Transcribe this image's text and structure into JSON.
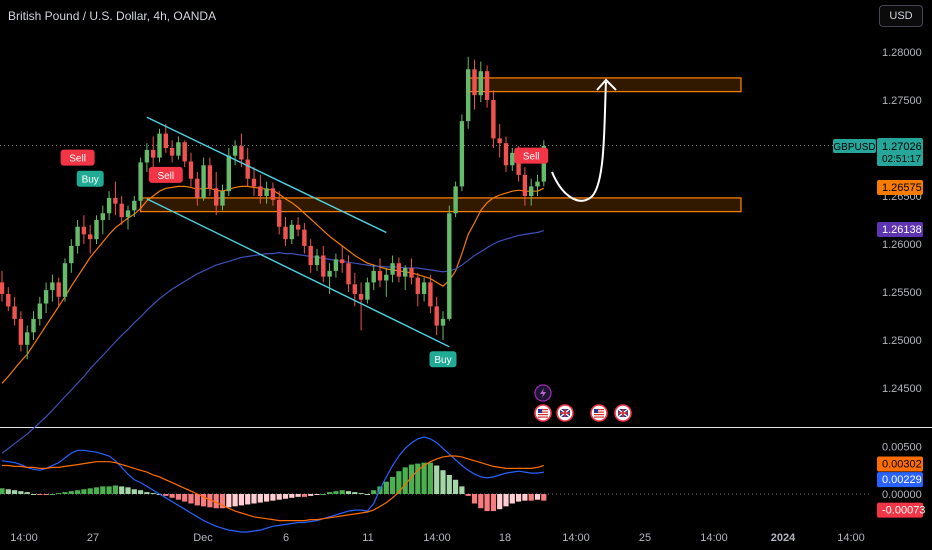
{
  "header": {
    "title": "British Pound / U.S. Dollar, 4h, OANDA",
    "currency_button": "USD"
  },
  "colors": {
    "up": "#26a69a",
    "up_body": "#66bb6a",
    "down": "#ef5350",
    "ema_fast": "#f57c00",
    "ema_slow": "#3f51b5",
    "channel": "#4dd0e1",
    "zone": "#f57c00",
    "macd": "#2962ff",
    "signal": "#ff6d00",
    "hist_up": "#4caf50",
    "hist_down": "#f77c80"
  },
  "chart_data": [
    {
      "type": "candlestick",
      "title": "British Pound / U.S. Dollar, 4h, OANDA",
      "ylim": [
        1.2415,
        1.282
      ],
      "y_ticks": [
        "1.28000",
        "1.27500",
        "1.27000",
        "1.26500",
        "1.26000",
        "1.25500",
        "1.25000",
        "1.24500"
      ],
      "x_ticks": [
        "14:00",
        "27",
        "Dec",
        "6",
        "11",
        "14:00",
        "18",
        "14:00",
        "25",
        "14:00",
        "2024",
        "14:00"
      ],
      "price_labels": [
        {
          "label": "GBPUSD",
          "value": "1.27026",
          "sub": "02:51:17"
        },
        {
          "label": "",
          "value": "1.26575"
        },
        {
          "label": "",
          "value": "1.26138"
        }
      ],
      "price_level": 1.27026,
      "ohlc": [
        [
          1.256,
          1.2572,
          1.254,
          1.2548
        ],
        [
          1.2548,
          1.2555,
          1.253,
          1.2535
        ],
        [
          1.2535,
          1.2545,
          1.2515,
          1.2522
        ],
        [
          1.2522,
          1.253,
          1.2488,
          1.2495
        ],
        [
          1.2495,
          1.2515,
          1.248,
          1.2508
        ],
        [
          1.2508,
          1.253,
          1.25,
          1.2522
        ],
        [
          1.2522,
          1.2545,
          1.2515,
          1.2538
        ],
        [
          1.2538,
          1.256,
          1.2528,
          1.2552
        ],
        [
          1.2552,
          1.2568,
          1.254,
          1.256
        ],
        [
          1.256,
          1.2565,
          1.2535,
          1.2545
        ],
        [
          1.2545,
          1.2585,
          1.254,
          1.258
        ],
        [
          1.258,
          1.2605,
          1.257,
          1.2598
        ],
        [
          1.2598,
          1.2625,
          1.259,
          1.2618
        ],
        [
          1.2618,
          1.263,
          1.26,
          1.261
        ],
        [
          1.261,
          1.262,
          1.259,
          1.2605
        ],
        [
          1.2605,
          1.263,
          1.26,
          1.2625
        ],
        [
          1.2625,
          1.264,
          1.261,
          1.2632
        ],
        [
          1.2632,
          1.2655,
          1.2625,
          1.2648
        ],
        [
          1.2648,
          1.2665,
          1.263,
          1.2642
        ],
        [
          1.2642,
          1.265,
          1.262,
          1.2628
        ],
        [
          1.2628,
          1.264,
          1.2615,
          1.2635
        ],
        [
          1.2635,
          1.265,
          1.2628,
          1.2645
        ],
        [
          1.2645,
          1.269,
          1.264,
          1.2685
        ],
        [
          1.2685,
          1.2705,
          1.2675,
          1.2698
        ],
        [
          1.2698,
          1.2712,
          1.268,
          1.269
        ],
        [
          1.269,
          1.272,
          1.2685,
          1.2715
        ],
        [
          1.2715,
          1.2725,
          1.2695,
          1.27
        ],
        [
          1.27,
          1.2708,
          1.2685,
          1.2692
        ],
        [
          1.2692,
          1.2712,
          1.2688,
          1.2706
        ],
        [
          1.2706,
          1.2708,
          1.268,
          1.2686
        ],
        [
          1.2686,
          1.2695,
          1.266,
          1.2668
        ],
        [
          1.2668,
          1.2675,
          1.264,
          1.2648
        ],
        [
          1.2648,
          1.269,
          1.2645,
          1.2682
        ],
        [
          1.2682,
          1.269,
          1.265,
          1.2658
        ],
        [
          1.2658,
          1.2675,
          1.263,
          1.264
        ],
        [
          1.264,
          1.2662,
          1.2635,
          1.2655
        ],
        [
          1.2655,
          1.27,
          1.265,
          1.2692
        ],
        [
          1.2692,
          1.2708,
          1.2682,
          1.2702
        ],
        [
          1.2702,
          1.2715,
          1.268,
          1.2688
        ],
        [
          1.2688,
          1.27,
          1.266,
          1.2668
        ],
        [
          1.2668,
          1.268,
          1.265,
          1.266
        ],
        [
          1.266,
          1.2672,
          1.2642,
          1.265
        ],
        [
          1.265,
          1.2665,
          1.2642,
          1.2658
        ],
        [
          1.2658,
          1.2664,
          1.264,
          1.2646
        ],
        [
          1.2646,
          1.2655,
          1.261,
          1.2618
        ],
        [
          1.2618,
          1.2628,
          1.2598,
          1.2605
        ],
        [
          1.2605,
          1.2625,
          1.26,
          1.262
        ],
        [
          1.262,
          1.2628,
          1.2608,
          1.2615
        ],
        [
          1.2615,
          1.2622,
          1.259,
          1.2598
        ],
        [
          1.2598,
          1.2605,
          1.257,
          1.2578
        ],
        [
          1.2578,
          1.2595,
          1.2572,
          1.2588
        ],
        [
          1.2588,
          1.2598,
          1.256,
          1.2566
        ],
        [
          1.2566,
          1.258,
          1.2548,
          1.2572
        ],
        [
          1.2572,
          1.259,
          1.2565,
          1.2584
        ],
        [
          1.2584,
          1.2598,
          1.257,
          1.258
        ],
        [
          1.258,
          1.2588,
          1.255,
          1.2558
        ],
        [
          1.2558,
          1.257,
          1.2535,
          1.2548
        ],
        [
          1.2548,
          1.256,
          1.251,
          1.2542
        ],
        [
          1.2542,
          1.2565,
          1.2538,
          1.256
        ],
        [
          1.256,
          1.2578,
          1.2552,
          1.2572
        ],
        [
          1.2572,
          1.2585,
          1.2555,
          1.2562
        ],
        [
          1.2562,
          1.2575,
          1.2545,
          1.2568
        ],
        [
          1.2568,
          1.2588,
          1.256,
          1.258
        ],
        [
          1.258,
          1.2586,
          1.256,
          1.2566
        ],
        [
          1.2566,
          1.2578,
          1.2552,
          1.2575
        ],
        [
          1.2575,
          1.2585,
          1.2558,
          1.2565
        ],
        [
          1.2565,
          1.257,
          1.2535,
          1.2548
        ],
        [
          1.2548,
          1.2565,
          1.254,
          1.256
        ],
        [
          1.256,
          1.2568,
          1.2528,
          1.2535
        ],
        [
          1.2535,
          1.2545,
          1.2505,
          1.2515
        ],
        [
          1.2515,
          1.253,
          1.25,
          1.2522
        ],
        [
          1.2522,
          1.264,
          1.252,
          1.2632
        ],
        [
          1.2632,
          1.2665,
          1.2628,
          1.266
        ],
        [
          1.266,
          1.2735,
          1.2655,
          1.2728
        ],
        [
          1.2728,
          1.2795,
          1.272,
          1.2782
        ],
        [
          1.2782,
          1.2792,
          1.274,
          1.2755
        ],
        [
          1.2755,
          1.279,
          1.2748,
          1.278
        ],
        [
          1.278,
          1.2786,
          1.2742,
          1.275
        ],
        [
          1.275,
          1.276,
          1.27,
          1.271
        ],
        [
          1.271,
          1.2725,
          1.269,
          1.2705
        ],
        [
          1.2705,
          1.2712,
          1.2675,
          1.2682
        ],
        [
          1.2682,
          1.27,
          1.2676,
          1.2695
        ],
        [
          1.2695,
          1.2702,
          1.2665,
          1.2672
        ],
        [
          1.2672,
          1.268,
          1.264,
          1.265
        ],
        [
          1.265,
          1.2668,
          1.264,
          1.266
        ],
        [
          1.266,
          1.2672,
          1.265,
          1.2665
        ],
        [
          1.2665,
          1.2708,
          1.266,
          1.2702
        ]
      ],
      "ema_fast": [
        1.2455,
        1.2462,
        1.247,
        1.2478,
        1.2485,
        1.2495,
        1.2505,
        1.2515,
        1.2525,
        1.2535,
        1.2545,
        1.2556,
        1.2566,
        1.2576,
        1.2586,
        1.2594,
        1.2602,
        1.261,
        1.2617,
        1.2622,
        1.2627,
        1.2631,
        1.2637,
        1.2645,
        1.265,
        1.2655,
        1.2658,
        1.2659,
        1.266,
        1.266,
        1.2659,
        1.2657,
        1.2658,
        1.2658,
        1.2656,
        1.2655,
        1.2657,
        1.2659,
        1.266,
        1.266,
        1.2659,
        1.2658,
        1.2657,
        1.2656,
        1.2652,
        1.2647,
        1.2643,
        1.2638,
        1.2632,
        1.2626,
        1.262,
        1.2614,
        1.2608,
        1.2603,
        1.2598,
        1.2593,
        1.2588,
        1.2584,
        1.258,
        1.2578,
        1.2576,
        1.2574,
        1.2573,
        1.2572,
        1.2571,
        1.257,
        1.2568,
        1.2566,
        1.2564,
        1.256,
        1.2556,
        1.2562,
        1.2572,
        1.259,
        1.261,
        1.2622,
        1.2635,
        1.2643,
        1.2648,
        1.2651,
        1.2653,
        1.2655,
        1.2656,
        1.2655,
        1.2655,
        1.2655,
        1.2658
      ],
      "ema_slow": [
        1.2382,
        1.2387,
        1.2392,
        1.2397,
        1.2402,
        1.2408,
        1.2414,
        1.242,
        1.2427,
        1.2434,
        1.2441,
        1.2448,
        1.2455,
        1.2462,
        1.247,
        1.2477,
        1.2484,
        1.2491,
        1.2498,
        1.2505,
        1.2511,
        1.2518,
        1.2524,
        1.2531,
        1.2537,
        1.2543,
        1.2548,
        1.2553,
        1.2557,
        1.2561,
        1.2565,
        1.2569,
        1.2572,
        1.2575,
        1.2578,
        1.258,
        1.2582,
        1.2584,
        1.2586,
        1.2587,
        1.2588,
        1.2589,
        1.259,
        1.259,
        1.2591,
        1.259,
        1.259,
        1.2589,
        1.2588,
        1.2587,
        1.2586,
        1.2585,
        1.2584,
        1.2583,
        1.2582,
        1.2581,
        1.258,
        1.2579,
        1.2578,
        1.2577,
        1.2577,
        1.2576,
        1.2576,
        1.2576,
        1.2575,
        1.2575,
        1.2575,
        1.2574,
        1.2573,
        1.2572,
        1.2571,
        1.2572,
        1.2574,
        1.2578,
        1.2583,
        1.2588,
        1.2592,
        1.2596,
        1.26,
        1.2603,
        1.2605,
        1.2607,
        1.2609,
        1.261,
        1.2611,
        1.2612,
        1.2614
      ],
      "zones": [
        {
          "x_from": 66,
          "x_to": 100,
          "y_low": 1.2765,
          "y_high": 1.2773
        },
        {
          "x_from": 0,
          "x_to": 100,
          "y_low": 1.264,
          "y_high": 1.2648
        }
      ],
      "channel_lines": [
        {
          "x1": 9,
          "y1": 1.2732,
          "x2": 61,
          "y2": 1.2612
        },
        {
          "x1": 9,
          "y1": 1.2647,
          "x2": 71,
          "y2": 1.2493
        }
      ],
      "signals": [
        {
          "bar": 12,
          "text": "Sell",
          "kind": "sell",
          "price": 1.269
        },
        {
          "bar": 14,
          "text": "Buy",
          "kind": "buy",
          "price": 1.2668
        },
        {
          "bar": 26,
          "text": "Sell",
          "kind": "sell",
          "price": 1.2672
        },
        {
          "bar": 70,
          "text": "Buy",
          "kind": "buy",
          "price": 1.248
        },
        {
          "bar": 84,
          "text": "Sell",
          "kind": "sell",
          "price": 1.2692
        }
      ],
      "event_icons": [
        "lightning-icon",
        "flag-us-icon",
        "flag-uk-icon",
        "flag-us-icon",
        "flag-uk-icon"
      ]
    },
    {
      "type": "macd",
      "y_ticks": [
        "0.00500",
        "0.00000"
      ],
      "value_labels": [
        "0.00302",
        "0.00229",
        "-0.00073"
      ],
      "ylim": [
        -0.005,
        0.0065
      ],
      "histogram": [
        0.0006,
        0.0005,
        0.0004,
        0.0003,
        0.0002,
        0.0,
        -0.0001,
        -0.0001,
        0.0,
        0.0001,
        0.0002,
        0.0003,
        0.0004,
        0.0005,
        0.0006,
        0.0007,
        0.0008,
        0.0008,
        0.0009,
        0.0008,
        0.0007,
        0.0005,
        0.0004,
        0.0002,
        0.0001,
        0.0,
        -0.0002,
        -0.0004,
        -0.0006,
        -0.0008,
        -0.001,
        -0.0012,
        -0.0013,
        -0.0014,
        -0.0015,
        -0.0015,
        -0.0014,
        -0.0013,
        -0.0012,
        -0.0011,
        -0.001,
        -0.0009,
        -0.0008,
        -0.0007,
        -0.0006,
        -0.0005,
        -0.0004,
        -0.0003,
        -0.0003,
        -0.0002,
        -0.0001,
        0.0,
        0.0002,
        0.0003,
        0.0004,
        0.0003,
        0.0002,
        0.0001,
        0.0,
        0.0004,
        0.0008,
        0.0013,
        0.0018,
        0.0024,
        0.0028,
        0.0031,
        0.0032,
        0.0033,
        0.0033,
        0.003,
        0.0025,
        0.002,
        0.0015,
        0.0008,
        -0.0002,
        -0.001,
        -0.0015,
        -0.0018,
        -0.0018,
        -0.0016,
        -0.0013,
        -0.001,
        -0.0008,
        -0.0007,
        -0.0007,
        -0.0006,
        -0.0007
      ],
      "macd": [
        0.0035,
        0.0034,
        0.0033,
        0.0031,
        0.0028,
        0.0026,
        0.0025,
        0.0027,
        0.003,
        0.0033,
        0.0038,
        0.0043,
        0.0046,
        0.0046,
        0.0045,
        0.0044,
        0.0042,
        0.004,
        0.0035,
        0.0028,
        0.0021,
        0.0015,
        0.0012,
        0.0008,
        0.0004,
        0.0,
        -0.0004,
        -0.0008,
        -0.0012,
        -0.0016,
        -0.002,
        -0.0024,
        -0.0028,
        -0.0031,
        -0.0034,
        -0.0036,
        -0.0038,
        -0.0039,
        -0.004,
        -0.004,
        -0.0039,
        -0.0038,
        -0.0036,
        -0.0034,
        -0.0033,
        -0.0032,
        -0.0031,
        -0.003,
        -0.003,
        -0.0029,
        -0.0028,
        -0.0026,
        -0.0024,
        -0.0022,
        -0.002,
        -0.0018,
        -0.0017,
        -0.0017,
        -0.0018,
        -0.001,
        0.0005,
        0.0018,
        0.003,
        0.004,
        0.0048,
        0.0054,
        0.0058,
        0.006,
        0.0058,
        0.0054,
        0.0048,
        0.0042,
        0.0036,
        0.003,
        0.0025,
        0.0021,
        0.0018,
        0.0017,
        0.0018,
        0.002,
        0.0022,
        0.0023,
        0.0024,
        0.0023,
        0.0022,
        0.0022,
        0.0023
      ],
      "signal": [
        0.003,
        0.003,
        0.0029,
        0.0029,
        0.0028,
        0.0028,
        0.0027,
        0.0027,
        0.0028,
        0.0028,
        0.0029,
        0.003,
        0.0031,
        0.0032,
        0.0033,
        0.0034,
        0.0034,
        0.0034,
        0.0033,
        0.0031,
        0.0029,
        0.0027,
        0.0025,
        0.0023,
        0.002,
        0.0018,
        0.0015,
        0.0012,
        0.0009,
        0.0006,
        0.0003,
        0.0,
        -0.0003,
        -0.0006,
        -0.0009,
        -0.0012,
        -0.0015,
        -0.0018,
        -0.002,
        -0.0022,
        -0.0024,
        -0.0025,
        -0.0026,
        -0.0027,
        -0.0028,
        -0.0028,
        -0.0028,
        -0.0028,
        -0.0028,
        -0.0027,
        -0.0027,
        -0.0026,
        -0.0025,
        -0.0024,
        -0.0023,
        -0.0022,
        -0.0021,
        -0.002,
        -0.0019,
        -0.0017,
        -0.0013,
        -0.0009,
        -0.0004,
        0.0002,
        0.001,
        0.0018,
        0.0025,
        0.003,
        0.0034,
        0.0037,
        0.0039,
        0.004,
        0.004,
        0.0039,
        0.0037,
        0.0035,
        0.0033,
        0.0031,
        0.0029,
        0.0028,
        0.0027,
        0.0027,
        0.0027,
        0.0027,
        0.0027,
        0.0028,
        0.003
      ]
    }
  ]
}
